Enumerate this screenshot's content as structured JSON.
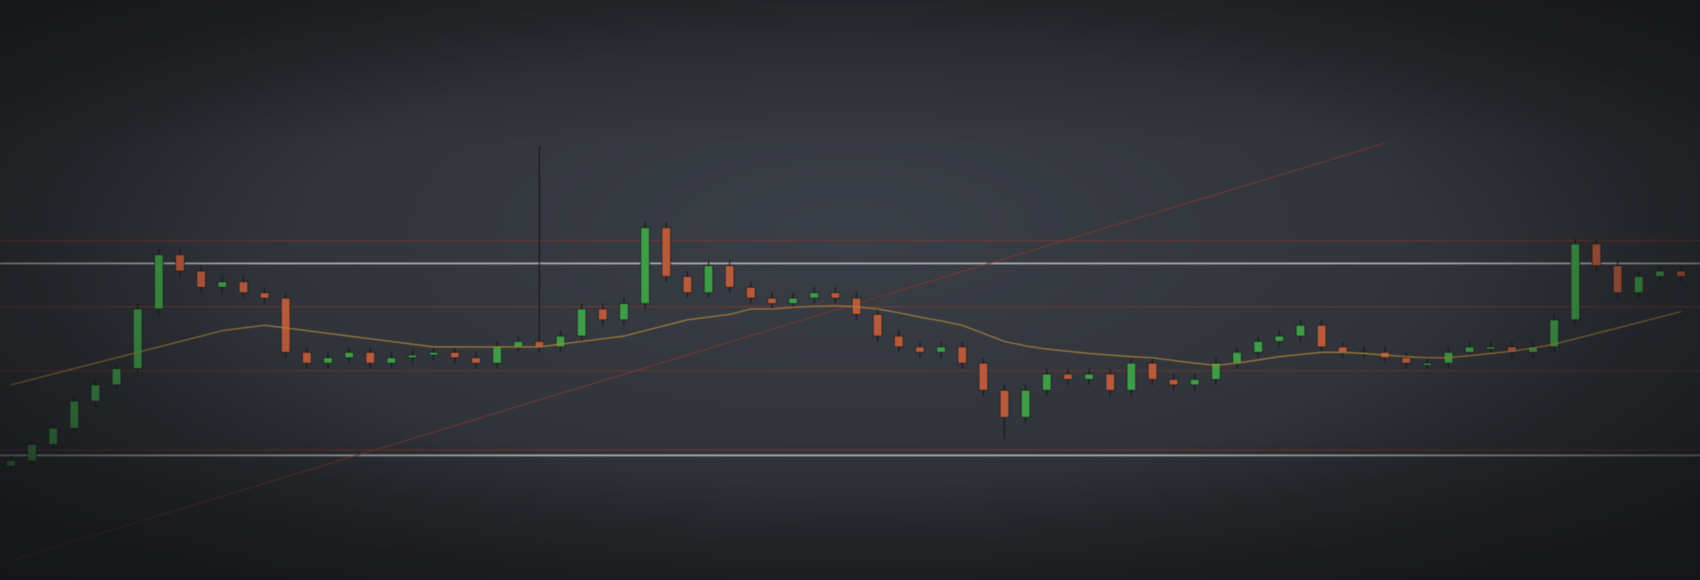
{
  "chart_data": {
    "type": "candlestick",
    "ylim": [
      0,
      107
    ],
    "up_color": "#3f9c47",
    "down_color": "#b85a3c",
    "open": [
      21,
      22,
      25,
      28,
      33,
      36,
      39,
      50,
      60,
      57,
      54,
      55,
      53,
      52,
      42,
      40,
      41,
      42,
      40,
      41,
      41.5,
      42,
      41,
      40,
      43,
      44,
      43,
      45,
      50,
      48,
      51,
      65,
      56,
      53,
      58,
      54,
      52,
      51,
      52,
      53,
      52,
      49,
      45,
      43,
      42,
      43,
      40,
      35,
      30,
      35,
      38,
      37,
      38,
      35,
      40,
      37,
      36,
      37,
      40,
      42,
      44,
      45,
      47,
      43,
      42,
      42,
      41,
      40,
      40,
      42,
      43,
      43,
      42,
      43,
      48,
      62,
      58,
      53,
      56,
      57
    ],
    "high": [
      23,
      26,
      29,
      34,
      37,
      40,
      51,
      61,
      61,
      58,
      56,
      56,
      54,
      53,
      43,
      42,
      43,
      43,
      42,
      42.5,
      43,
      43,
      42,
      44,
      45,
      80,
      46,
      51,
      51,
      52,
      66,
      66,
      57,
      59,
      59,
      55,
      53,
      53,
      54,
      54,
      53,
      50,
      46,
      44,
      44,
      44,
      41,
      36,
      36,
      39,
      39,
      39,
      39,
      41,
      41,
      38,
      38,
      41,
      43,
      45,
      46,
      48,
      48,
      44,
      43,
      43,
      42,
      41,
      43,
      44,
      44,
      44,
      44,
      49,
      63,
      63,
      59,
      57,
      58,
      58
    ],
    "low": [
      20,
      21,
      24,
      27,
      32,
      35,
      38,
      49,
      56,
      53,
      53,
      52,
      51,
      41,
      39,
      39,
      40,
      39,
      39,
      40,
      40.5,
      40,
      39,
      39,
      42,
      42,
      42,
      44,
      47,
      47,
      50,
      55,
      52,
      52,
      53,
      51,
      50,
      50,
      51,
      51,
      48,
      44,
      42,
      41,
      41,
      39,
      34,
      26,
      29,
      34,
      36,
      36,
      34,
      34,
      36,
      35,
      35,
      36,
      39,
      41,
      43,
      44,
      42,
      41,
      41,
      40,
      39,
      39,
      39,
      41,
      42,
      41,
      41,
      42,
      47,
      57,
      52,
      52,
      55,
      55
    ],
    "close": [
      22,
      25,
      28,
      33,
      36,
      39,
      50,
      60,
      57,
      54,
      55,
      53,
      52,
      42,
      40,
      41,
      42,
      40,
      41,
      41.5,
      42,
      41,
      40,
      43,
      44,
      43,
      45,
      50,
      48,
      51,
      65,
      56,
      53,
      58,
      54,
      52,
      51,
      52,
      53,
      52,
      49,
      45,
      43,
      42,
      43,
      40,
      35,
      30,
      35,
      38,
      37,
      38,
      35,
      40,
      37,
      36,
      37,
      40,
      42,
      44,
      45,
      47,
      43,
      42,
      42,
      41,
      40,
      40,
      42,
      43,
      43,
      42,
      43,
      48,
      62,
      58,
      53,
      56,
      57,
      56
    ],
    "moving_average": {
      "color": "#a8823a",
      "values": [
        36,
        37,
        38,
        39,
        40,
        41,
        42,
        43,
        44,
        45,
        46,
        46.5,
        47,
        46.5,
        46,
        45.5,
        45,
        44.5,
        44,
        43.5,
        43,
        43,
        43,
        43,
        43,
        43,
        43.5,
        44,
        44.5,
        45,
        46,
        47,
        48,
        48.5,
        49,
        50,
        50,
        50.3,
        50.5,
        50.6,
        50.4,
        50,
        49.3,
        48.5,
        47.8,
        47,
        45.5,
        44,
        43.2,
        42.6,
        42.2,
        41.8,
        41.5,
        41.2,
        41,
        40.5,
        40,
        39.6,
        40,
        40.6,
        41.2,
        41.6,
        42,
        42,
        41.8,
        41.5,
        41.2,
        41,
        41,
        41.4,
        41.8,
        42.2,
        42.8,
        43.5,
        44.5,
        45.5,
        46.5,
        47.5,
        48.5,
        49.5
      ]
    },
    "levels": [
      {
        "value": 58.4,
        "color": "#d8d8d8"
      },
      {
        "value": 23,
        "color": "#d8d8d8"
      },
      {
        "value": 62.6,
        "color": "#8a3a30"
      },
      {
        "value": 50.4,
        "color": "#8a3a30"
      },
      {
        "value": 38.6,
        "color": "#8a3a30"
      },
      {
        "value": 24,
        "color": "#8a3a30"
      }
    ],
    "trendline": {
      "color": "#7a3a32",
      "start": [
        0,
        3.6
      ],
      "end": [
        65,
        80.6
      ]
    }
  }
}
